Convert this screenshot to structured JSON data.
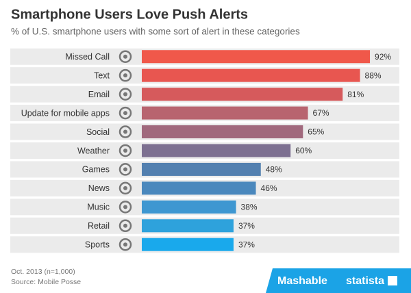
{
  "chart_data": {
    "type": "bar",
    "orientation": "horizontal",
    "title": "Smartphone Users Love Push Alerts",
    "subtitle": "% of U.S. smartphone users with some sort of alert in these categories",
    "categories": [
      "Missed Call",
      "Text",
      "Email",
      "Update for mobile apps",
      "Social",
      "Weather",
      "Games",
      "News",
      "Music",
      "Retail",
      "Sports"
    ],
    "values": [
      92,
      88,
      81,
      67,
      65,
      60,
      48,
      46,
      38,
      37,
      37
    ],
    "value_labels": [
      "92%",
      "88%",
      "81%",
      "67%",
      "65%",
      "60%",
      "48%",
      "46%",
      "38%",
      "37%",
      "37%"
    ],
    "colors": [
      "#f0584a",
      "#e85650",
      "#d65a5c",
      "#b8646f",
      "#a1697d",
      "#7d7091",
      "#5380b0",
      "#4a88bd",
      "#3e97d1",
      "#2ea2dc",
      "#19a9ec"
    ],
    "xlim": [
      0,
      100
    ],
    "note": "Oct. 2013 (n=1,000)",
    "source": "Source: Mobile Posse",
    "logos": [
      "Mashable",
      "statista"
    ]
  }
}
